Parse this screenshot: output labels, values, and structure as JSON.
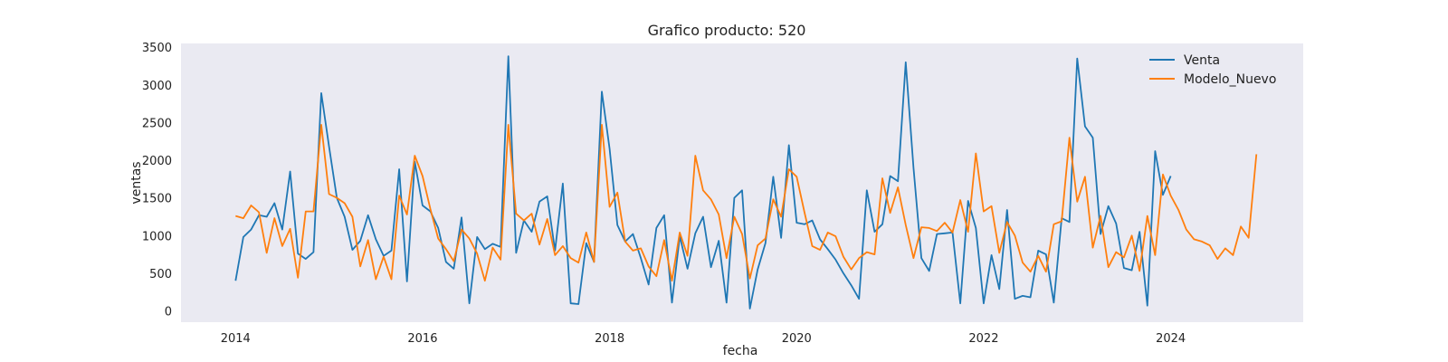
{
  "chart_data": {
    "type": "line",
    "title": "Grafico producto: 520",
    "xlabel": "fecha",
    "ylabel": "ventas",
    "x_ticks": [
      "2014",
      "2016",
      "2018",
      "2020",
      "2022",
      "2024"
    ],
    "y_ticks": [
      0,
      500,
      1000,
      1500,
      2000,
      2500,
      3000,
      3500
    ],
    "ylim": [
      -150,
      3550
    ],
    "xlim": [
      "2013-06",
      "2025-06"
    ],
    "grid": false,
    "background": "#eaeaf2",
    "legend_position": "top-right",
    "x_start": "2014-01",
    "series": [
      {
        "name": "Venta",
        "color": "#1f77b4",
        "values": [
          400,
          980,
          1080,
          1270,
          1250,
          1430,
          1080,
          1850,
          760,
          690,
          780,
          2890,
          2180,
          1500,
          1250,
          810,
          930,
          1270,
          950,
          730,
          800,
          1880,
          390,
          1980,
          1400,
          1320,
          1100,
          650,
          560,
          1240,
          100,
          980,
          820,
          890,
          850,
          3380,
          770,
          1200,
          1050,
          1450,
          1520,
          800,
          1690,
          100,
          90,
          900,
          650,
          2910,
          2150,
          1140,
          920,
          1020,
          700,
          350,
          1100,
          1270,
          110,
          990,
          560,
          1030,
          1250,
          580,
          930,
          110,
          1500,
          1600,
          30,
          550,
          900,
          1780,
          970,
          2200,
          1170,
          1150,
          1200,
          950,
          820,
          680,
          500,
          340,
          160,
          1600,
          1050,
          1150,
          1790,
          1720,
          3300,
          1900,
          700,
          530,
          1020,
          1030,
          1040,
          100,
          1460,
          1100,
          100,
          740,
          290,
          1340,
          160,
          200,
          180,
          800,
          750,
          110,
          1230,
          1180,
          3350,
          2450,
          2300,
          1020,
          1390,
          1160,
          570,
          540,
          1050,
          70,
          2120,
          1540,
          1790
        ]
      },
      {
        "name": "Modelo_Nuevo",
        "color": "#ff7f0e",
        "values": [
          1260,
          1230,
          1400,
          1310,
          770,
          1230,
          860,
          1090,
          440,
          1320,
          1320,
          2470,
          1550,
          1500,
          1430,
          1250,
          590,
          940,
          420,
          720,
          420,
          1530,
          1280,
          2060,
          1790,
          1350,
          960,
          820,
          660,
          1080,
          960,
          760,
          400,
          840,
          680,
          2470,
          1290,
          1200,
          1290,
          880,
          1220,
          740,
          860,
          700,
          640,
          1040,
          650,
          2470,
          1380,
          1570,
          920,
          800,
          830,
          590,
          460,
          940,
          400,
          1040,
          730,
          2060,
          1600,
          1480,
          1280,
          700,
          1250,
          1020,
          430,
          870,
          960,
          1480,
          1250,
          1880,
          1780,
          1310,
          860,
          810,
          1040,
          990,
          720,
          550,
          700,
          780,
          750,
          1760,
          1300,
          1640,
          1140,
          700,
          1110,
          1100,
          1060,
          1170,
          1040,
          1470,
          1050,
          2090,
          1320,
          1390,
          770,
          1180,
          1000,
          640,
          520,
          730,
          520,
          1150,
          1190,
          2300,
          1450,
          1780,
          840,
          1260,
          580,
          780,
          710,
          1000,
          530,
          1260,
          740,
          1810,
          1530,
          1340,
          1080,
          950,
          920,
          870,
          690,
          830,
          740,
          1120,
          970,
          2080
        ]
      }
    ]
  }
}
